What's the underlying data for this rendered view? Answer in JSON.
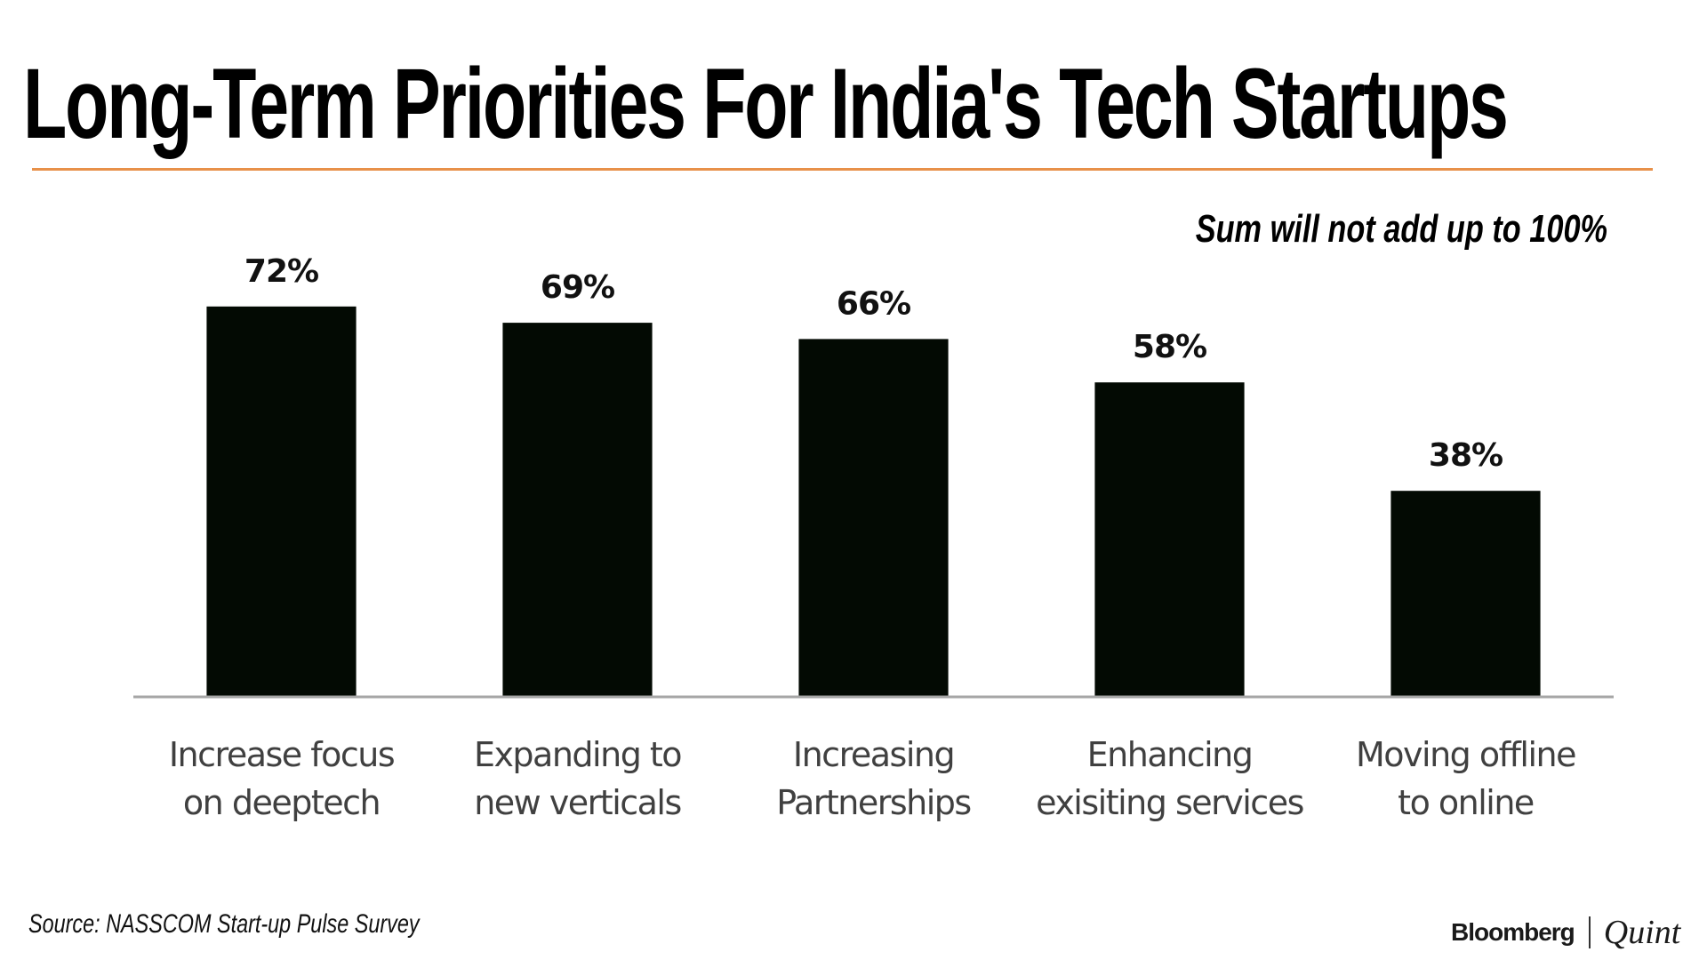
{
  "header": {
    "title": "Long-Term Priorities For India's Tech Startups",
    "rule_color": "#E8914A"
  },
  "note": "Sum will not add up to 100%",
  "footer": {
    "source": "Source: NASSCOM Start-up Pulse Survey",
    "brand_primary": "Bloomberg",
    "brand_secondary": "Quint"
  },
  "chart_data": {
    "type": "bar",
    "title": "Long-Term Priorities For India's Tech Startups",
    "xlabel": "",
    "ylabel": "",
    "ylim": [
      0,
      100
    ],
    "grid": false,
    "legend": "none",
    "categories": [
      [
        "Increase focus",
        "on deeptech"
      ],
      [
        "Expanding to",
        "new verticals"
      ],
      [
        "Increasing",
        "Partnerships"
      ],
      [
        "Enhancing",
        "exisiting services"
      ],
      [
        "Moving offline",
        "to online"
      ]
    ],
    "values": [
      72,
      69,
      66,
      58,
      38
    ],
    "value_labels": [
      "72%",
      "69%",
      "66%",
      "58%",
      "38%"
    ],
    "unit": "%",
    "bar_color": "#030A03",
    "axis_color": "#A6A6A6",
    "annotation": "Sum will not add up to 100%"
  }
}
